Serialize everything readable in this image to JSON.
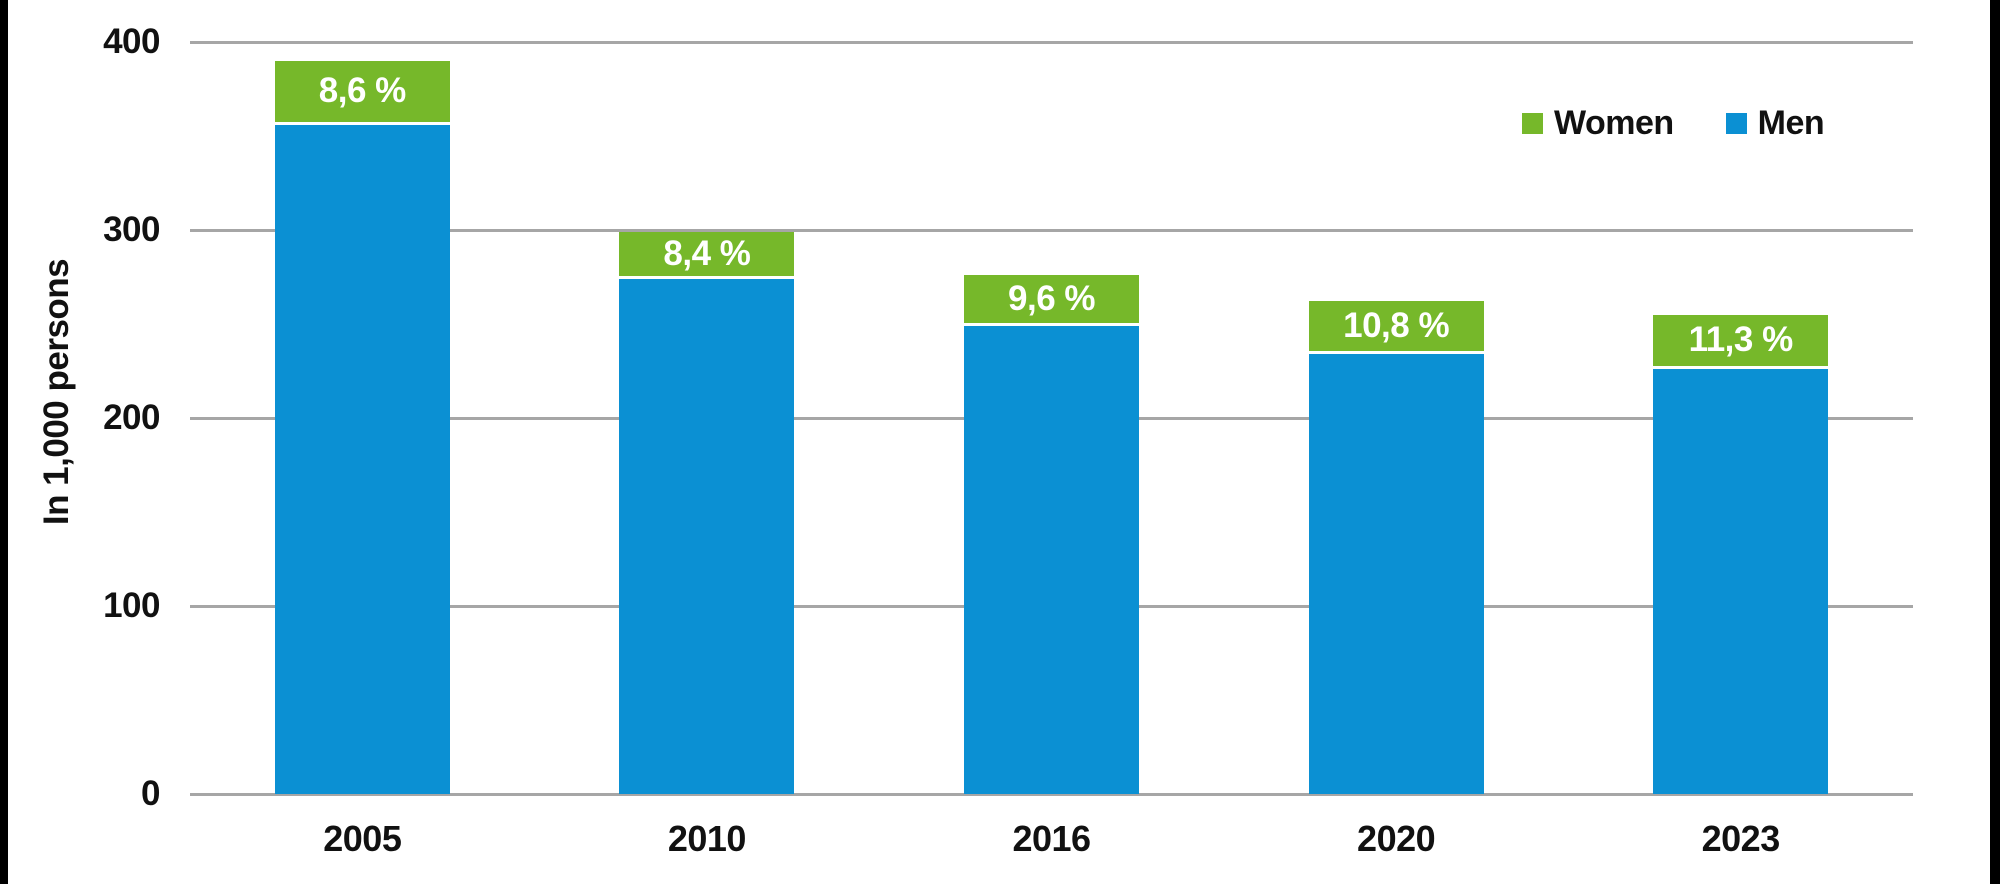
{
  "chart_data": {
    "type": "bar",
    "stacked": true,
    "title": "",
    "xlabel": "",
    "ylabel": "In 1,000 persons",
    "categories": [
      "2005",
      "2010",
      "2016",
      "2020",
      "2023"
    ],
    "series": [
      {
        "name": "Men",
        "color": "#0b90d3",
        "values": [
          356,
          274,
          249,
          234,
          226
        ]
      },
      {
        "name": "Women",
        "color": "#76b82a",
        "values": [
          34,
          25,
          27,
          28,
          29
        ]
      }
    ],
    "segment_labels": {
      "series": "Women",
      "labels": [
        "8,6 %",
        "8,4 %",
        "9,6 %",
        "10,8 %",
        "11,3 %"
      ]
    },
    "ylim": [
      0,
      400
    ],
    "yticks": [
      0,
      100,
      200,
      300,
      400
    ],
    "grid": true,
    "legend": {
      "position": "top-right",
      "items": [
        {
          "label": "Women",
          "color": "#76b82a"
        },
        {
          "label": "Men",
          "color": "#0b90d3"
        }
      ]
    }
  },
  "colors": {
    "background": "#ffffff",
    "gridline": "#a6a6a6",
    "axis_text": "#111111",
    "segment_label_text": "#ffffff",
    "side_border": "#000000"
  }
}
